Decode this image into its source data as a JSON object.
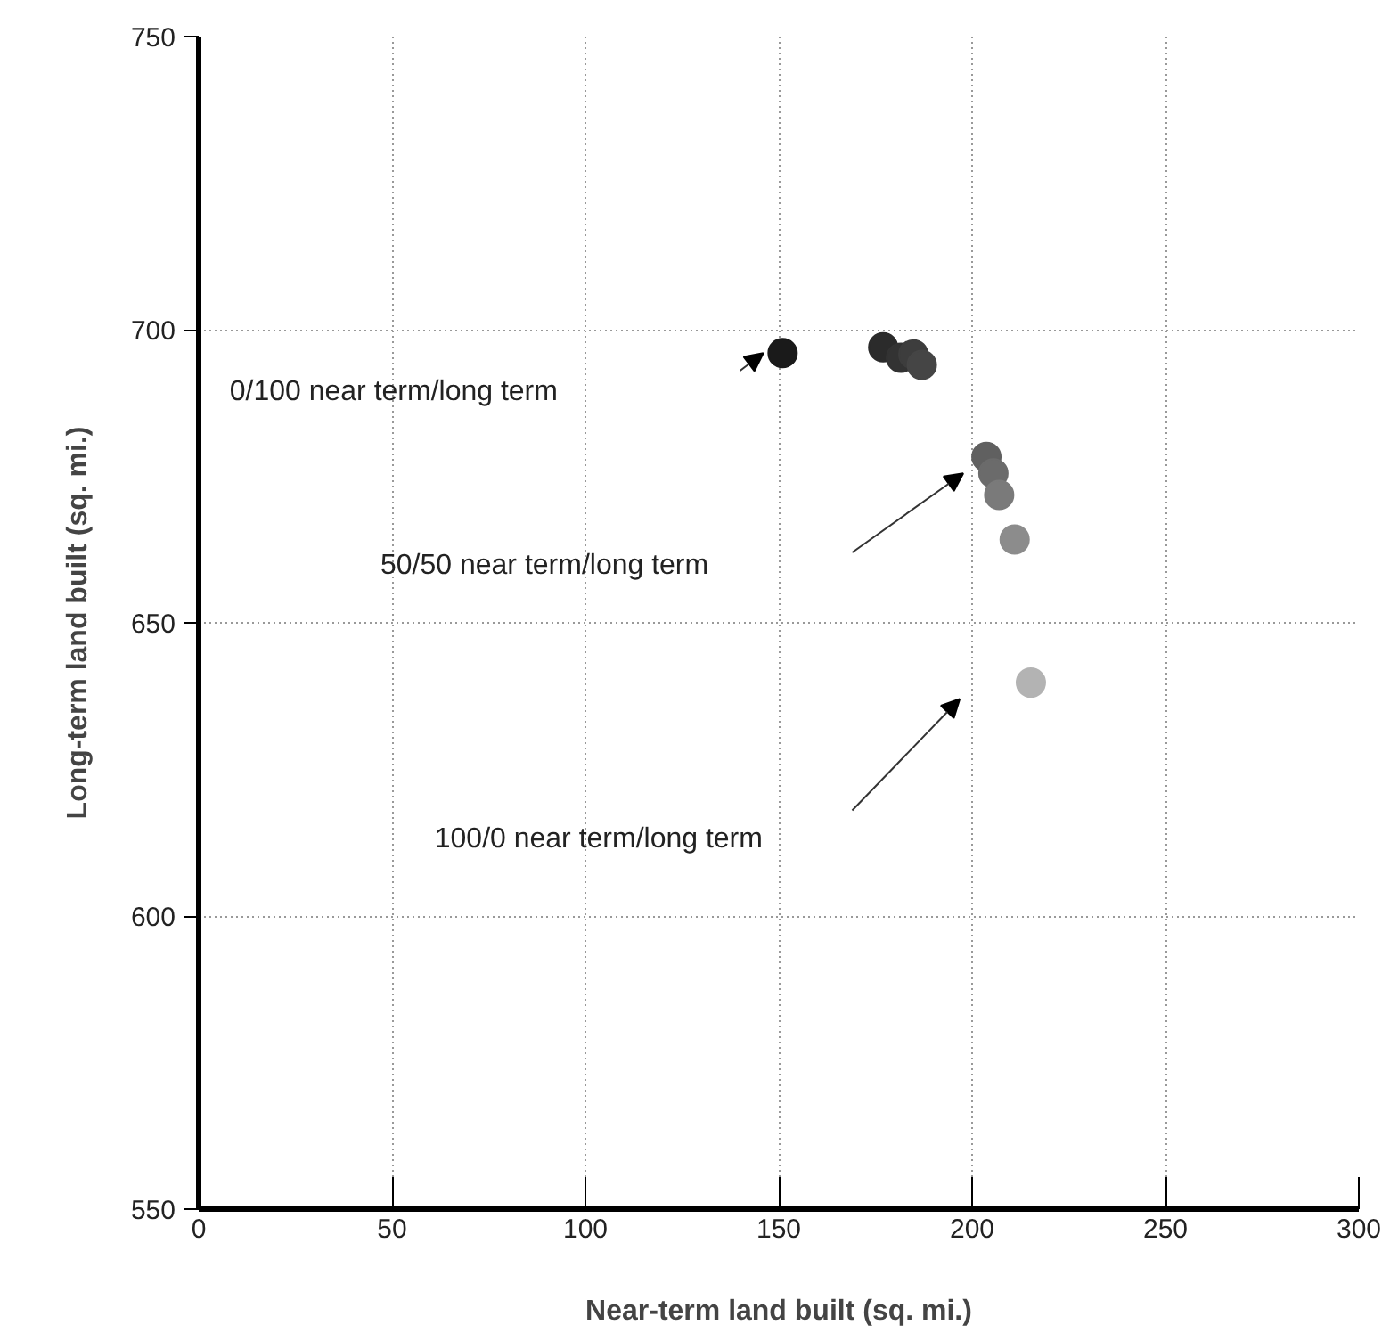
{
  "chart_data": {
    "type": "scatter",
    "xlabel": "Near-term land built (sq. mi.)",
    "ylabel": "Long-term land built (sq. mi.)",
    "x": [
      151,
      177,
      181.6,
      184.8,
      187,
      203.7,
      205.5,
      207,
      211,
      215.2
    ],
    "values": [
      696,
      697,
      695.2,
      695.8,
      694,
      678.3,
      675.5,
      671.8,
      664.2,
      639.8
    ],
    "colors": [
      "#1a1a1a",
      "#2b2b2b",
      "#333333",
      "#3d3d3d",
      "#454545",
      "#606060",
      "#6b6b6b",
      "#7a7a7a",
      "#8c8c8c",
      "#b3b3b3"
    ],
    "marker": "circle",
    "xlim": [
      0,
      300
    ],
    "xticks": [
      0,
      50,
      100,
      150,
      200,
      250,
      300
    ],
    "ylim": [
      550,
      750
    ],
    "yticks": [
      550,
      600,
      650,
      700,
      750
    ],
    "grid": true,
    "annotations": [
      "0/100 near term/long term",
      "50/50 near term/long term",
      "100/0 near term/long term"
    ]
  }
}
